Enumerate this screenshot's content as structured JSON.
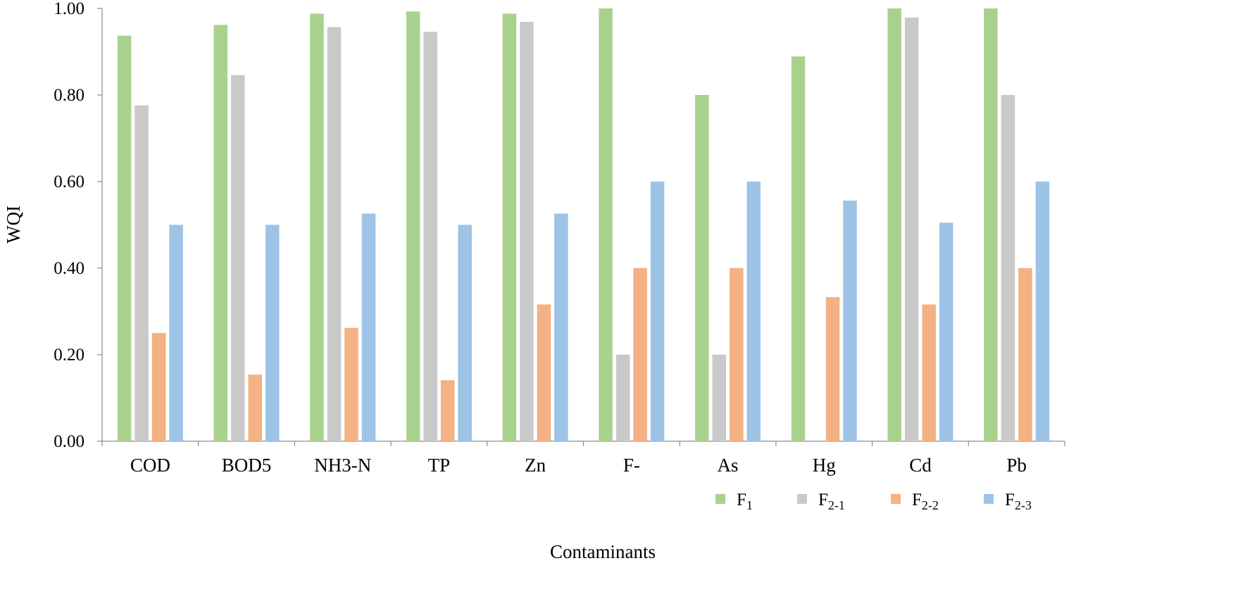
{
  "chart_data": {
    "type": "bar",
    "title": "",
    "xlabel": "Contaminants",
    "ylabel": "WQI",
    "ylim": [
      0,
      1
    ],
    "yticks": [
      "0.00",
      "0.20",
      "0.40",
      "0.60",
      "0.80",
      "1.00"
    ],
    "categories": [
      "COD",
      "BOD5",
      "NH3-N",
      "TP",
      "Zn",
      "F-",
      "As",
      "Hg",
      "Cd",
      "Pb"
    ],
    "grid": false,
    "legend_position": "bottom-right",
    "series": [
      {
        "name": "F1",
        "label_main": "F",
        "label_sub": "1",
        "color": "#a9d18e",
        "values": [
          0.937,
          0.962,
          0.988,
          0.993,
          0.988,
          1.0,
          0.8,
          0.889,
          1.0,
          1.0
        ]
      },
      {
        "name": "F2-1",
        "label_main": "F",
        "label_sub": "2-1",
        "color": "#c9c9c9",
        "values": [
          0.776,
          0.846,
          0.957,
          0.946,
          0.969,
          0.2,
          0.2,
          null,
          0.979,
          0.8
        ]
      },
      {
        "name": "F2-2",
        "label_main": "F",
        "label_sub": "2-2",
        "color": "#f4b183",
        "values": [
          0.25,
          0.154,
          0.262,
          0.141,
          0.316,
          0.4,
          0.4,
          0.333,
          0.316,
          0.4
        ]
      },
      {
        "name": "F2-3",
        "label_main": "F",
        "label_sub": "2-3",
        "color": "#9dc3e6",
        "values": [
          0.5,
          0.5,
          0.526,
          0.5,
          0.526,
          0.6,
          0.6,
          0.556,
          0.505,
          0.6
        ]
      }
    ]
  }
}
